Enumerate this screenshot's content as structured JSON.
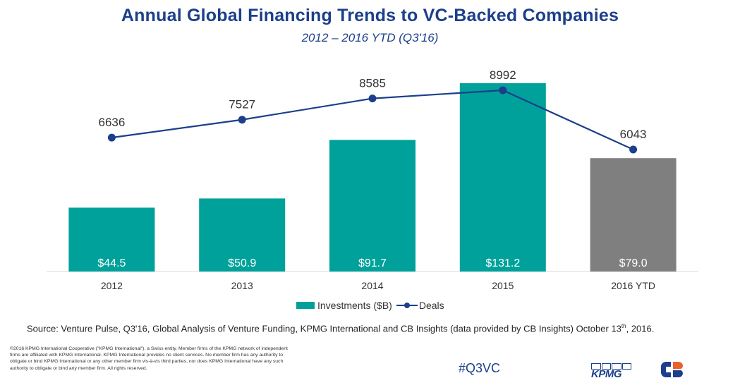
{
  "header": {
    "title": "Annual Global Financing Trends to VC-Backed Companies",
    "subtitle": "2012 – 2016 YTD (Q3'16)"
  },
  "chart_data": {
    "type": "bar+line",
    "categories": [
      "2012",
      "2013",
      "2014",
      "2015",
      "2016 YTD"
    ],
    "series": [
      {
        "name": "Investments ($B)",
        "type": "bar",
        "values": [
          44.5,
          50.9,
          91.7,
          131.2,
          79.0
        ],
        "labels": [
          "$44.5",
          "$50.9",
          "$91.7",
          "$131.2",
          "$79.0"
        ],
        "colors": [
          "#00a19a",
          "#00a19a",
          "#00a19a",
          "#00a19a",
          "#7f7f7f"
        ]
      },
      {
        "name": "Deals",
        "type": "line",
        "values": [
          6636,
          7527,
          8585,
          8992,
          6043
        ],
        "labels": [
          "6636",
          "7527",
          "8585",
          "8992",
          "6043"
        ],
        "color": "#1b3f8b"
      }
    ],
    "bar_axis_range": [
      0,
      140
    ],
    "line_axis_range": [
      0,
      10000
    ],
    "legend_position": "bottom-center"
  },
  "legend": {
    "investments": "Investments ($B)",
    "deals": "Deals"
  },
  "footer": {
    "source_main": "Source: Venture Pulse, Q3'16, Global Analysis of Venture Funding, KPMG International and CB Insights (data provided by CB Insights) October 13",
    "source_sup": "th",
    "source_end": ", 2016.",
    "copyright": "©2016 KPMG International Cooperative (\"KPMG International\"), a Swiss entity. Member firms of the KPMG network of independent firms are affiliated with KPMG International. KPMG International provides no client services. No member firm has any authority to obligate or bind KPMG International or any other member firm vis-à-vis third parties, nor does KPMG International have any such authority to obligate or bind any member firm. All rights reserved.",
    "hashtag": "#Q3VC",
    "kpmg_logo": "KPMG"
  },
  "colors": {
    "bar": "#00a19a",
    "bar_ytd": "#7f7f7f",
    "line": "#1b3f8b",
    "title": "#1b3f8b"
  }
}
